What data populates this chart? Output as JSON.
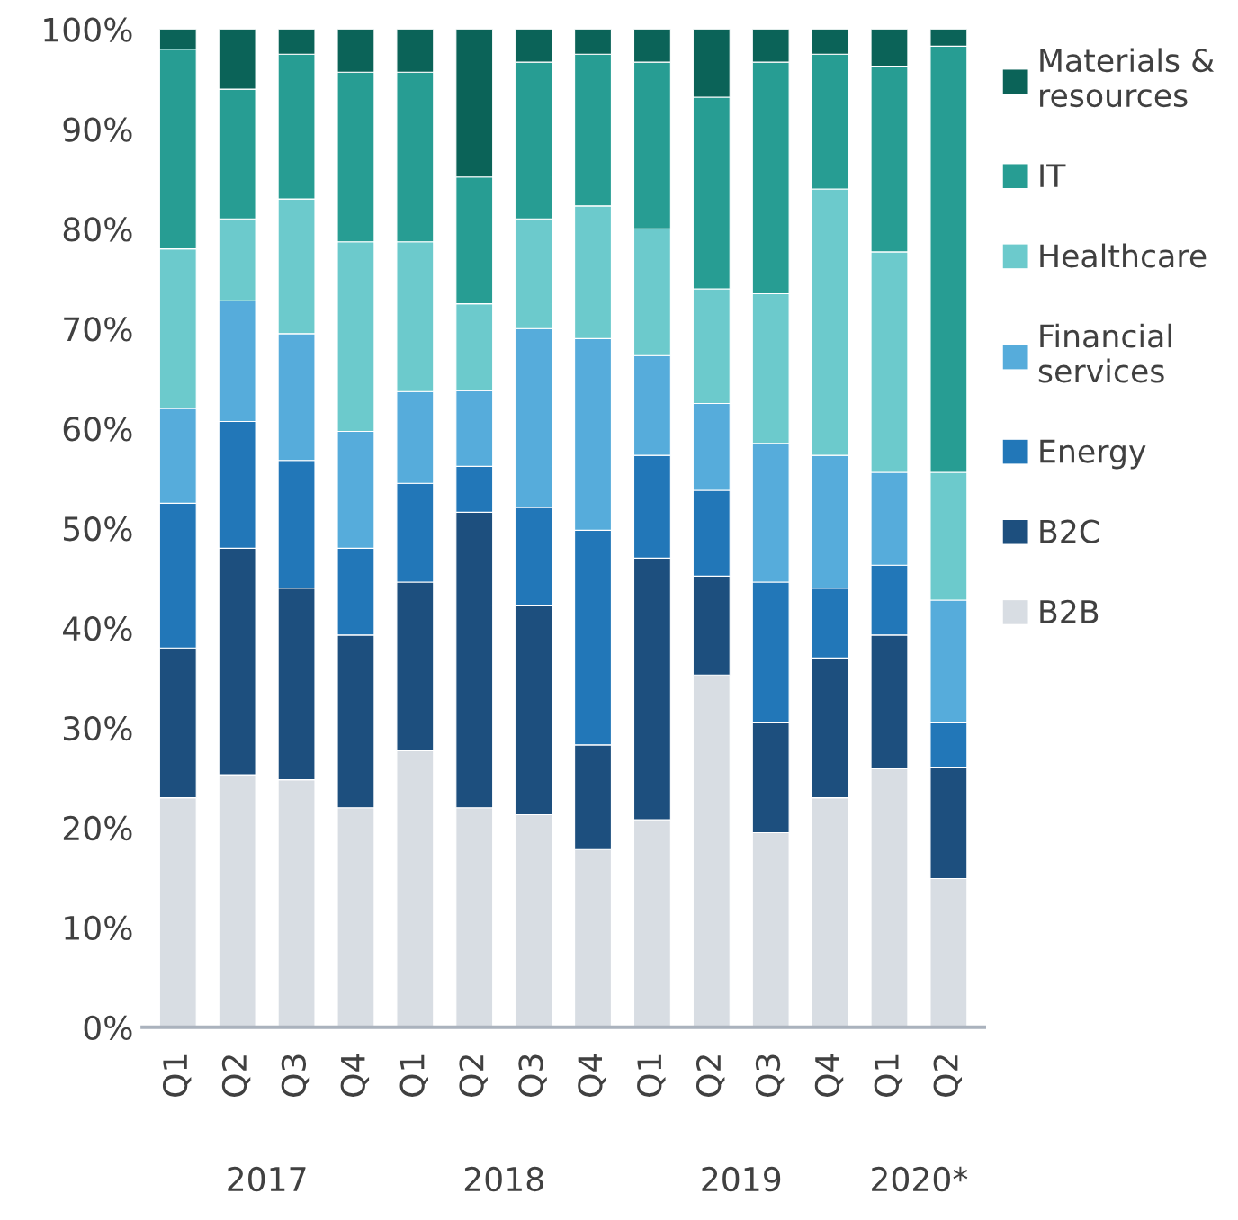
{
  "chart_data": {
    "type": "bar",
    "stacked": true,
    "legend": "right",
    "grid": false,
    "categories": [
      "Q1",
      "Q2",
      "Q3",
      "Q4",
      "Q1",
      "Q2",
      "Q3",
      "Q4",
      "Q1",
      "Q2",
      "Q3",
      "Q4",
      "Q1",
      "Q2"
    ],
    "ylim": [
      0,
      100
    ],
    "yticks": [
      {
        "value": 0,
        "label": "0%"
      },
      {
        "value": 10,
        "label": "10%"
      },
      {
        "value": 20,
        "label": "20%"
      },
      {
        "value": 30,
        "label": "30%"
      },
      {
        "value": 40,
        "label": "40%"
      },
      {
        "value": 50,
        "label": "50%"
      },
      {
        "value": 60,
        "label": "60%"
      },
      {
        "value": 70,
        "label": "70%"
      },
      {
        "value": 80,
        "label": "80%"
      },
      {
        "value": 90,
        "label": "90%"
      },
      {
        "value": 100,
        "label": "100%"
      }
    ],
    "annotations": [
      "2017",
      "2018",
      "2019",
      "2020*"
    ],
    "series": [
      {
        "name": "B2B",
        "color": "#d8dde3",
        "values": [
          23,
          25.3,
          24.8,
          22,
          27.7,
          22,
          21.3,
          17.8,
          20.8,
          35.3,
          19.5,
          23,
          25.9,
          14.9
        ]
      },
      {
        "name": "B2C",
        "color": "#1d4f7e",
        "values": [
          15,
          22.7,
          19.2,
          17.3,
          16.9,
          29.6,
          21,
          10.5,
          26.2,
          9.9,
          11,
          14,
          13.4,
          11.1
        ]
      },
      {
        "name": "Energy",
        "color": "#2277b8",
        "values": [
          14.5,
          12.7,
          12.8,
          8.7,
          9.9,
          4.6,
          9.8,
          21.5,
          10.3,
          8.6,
          14.1,
          7,
          7,
          4.5
        ]
      },
      {
        "name": "Financial services",
        "color": "#56acdb",
        "values": [
          9.5,
          12.1,
          12.7,
          11.7,
          9.2,
          7.6,
          17.9,
          19.2,
          10,
          8.7,
          13.9,
          13.3,
          9.3,
          12.3
        ]
      },
      {
        "name": "Healthcare",
        "color": "#6ccacc",
        "values": [
          16,
          8.2,
          13.5,
          19,
          15,
          8.7,
          11,
          13.3,
          12.7,
          11.5,
          15,
          26.7,
          22.1,
          12.8
        ]
      },
      {
        "name": "IT",
        "color": "#279d93",
        "values": [
          20,
          13,
          14.5,
          17,
          17,
          12.7,
          15.7,
          15.2,
          16.7,
          19.2,
          23.2,
          13.5,
          18.6,
          42.7
        ]
      },
      {
        "name": "Materials & resources",
        "color": "#0b6358",
        "values": [
          2,
          6,
          2.5,
          4.3,
          4.3,
          14.8,
          3.3,
          2.5,
          3.3,
          6.8,
          3.3,
          2.5,
          3.7,
          1.7
        ]
      }
    ]
  }
}
